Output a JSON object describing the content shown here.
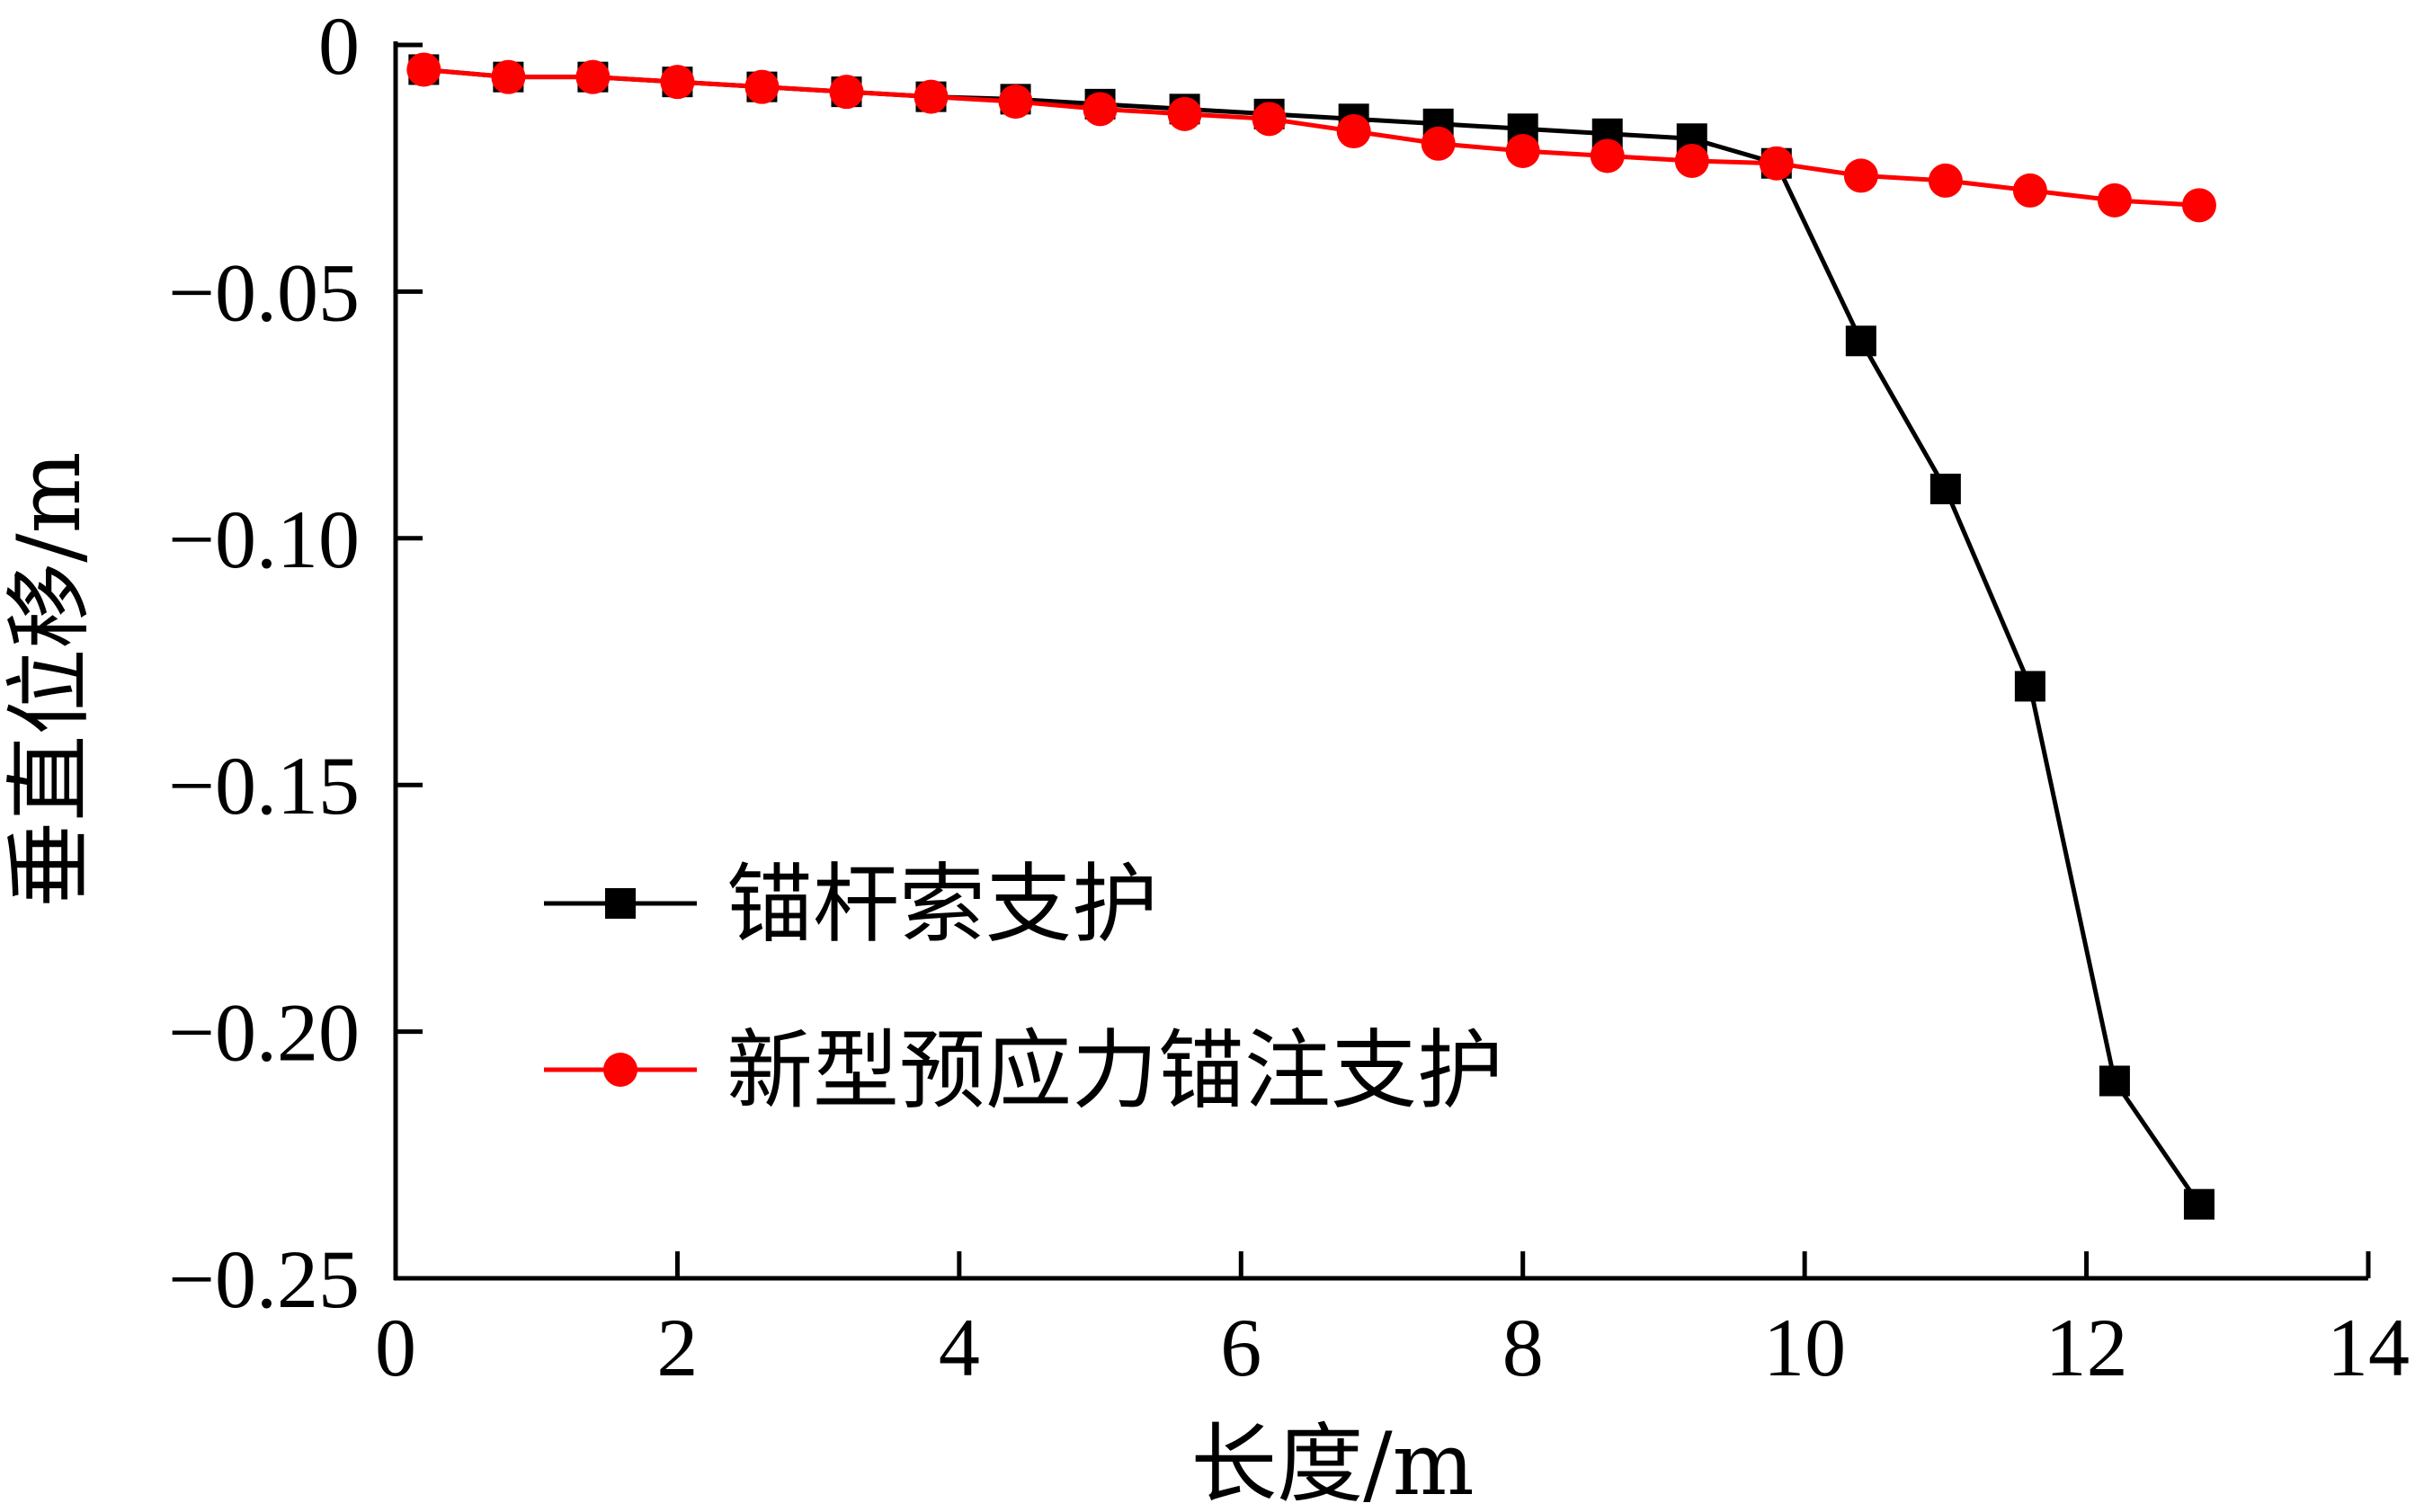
{
  "chart_data": {
    "type": "line",
    "title": "",
    "xlabel": "长度/m",
    "ylabel": "垂直位移/m",
    "xlim": [
      0,
      14
    ],
    "ylim": [
      -0.25,
      0
    ],
    "x_ticks": [
      0,
      2,
      4,
      6,
      8,
      10,
      12,
      14
    ],
    "x_tick_labels": [
      "0",
      "2",
      "4",
      "6",
      "8",
      "10",
      "12",
      "14"
    ],
    "y_ticks": [
      0,
      -0.05,
      -0.1,
      -0.15,
      -0.2,
      -0.25
    ],
    "y_tick_labels": [
      "0",
      "−0.05",
      "−0.10",
      "−0.15",
      "−0.20",
      "−0.25"
    ],
    "grid": false,
    "legend_position": "lower-left",
    "series": [
      {
        "name": "锚杆索支护",
        "color": "#000000",
        "marker": "square",
        "x": [
          0.2,
          0.8,
          1.4,
          2.0,
          2.6,
          3.2,
          3.8,
          4.4,
          5.0,
          5.6,
          6.2,
          6.8,
          7.4,
          8.0,
          8.6,
          9.2,
          9.8,
          10.4,
          11.0,
          11.6,
          12.2,
          12.8
        ],
        "values": [
          -0.005,
          -0.0065,
          -0.0065,
          -0.0075,
          -0.0085,
          -0.0095,
          -0.0105,
          -0.011,
          -0.012,
          -0.013,
          -0.014,
          -0.015,
          -0.016,
          -0.017,
          -0.018,
          -0.019,
          -0.024,
          -0.06,
          -0.09,
          -0.13,
          -0.21,
          -0.235
        ]
      },
      {
        "name": "新型预应力锚注支护",
        "color": "#ff0000",
        "marker": "circle",
        "x": [
          0.2,
          0.8,
          1.4,
          2.0,
          2.6,
          3.2,
          3.8,
          4.4,
          5.0,
          5.6,
          6.2,
          6.8,
          7.4,
          8.0,
          8.6,
          9.2,
          9.8,
          10.4,
          11.0,
          11.6,
          12.2,
          12.8
        ],
        "values": [
          -0.005,
          -0.0065,
          -0.0065,
          -0.0075,
          -0.0085,
          -0.0095,
          -0.0105,
          -0.0115,
          -0.013,
          -0.014,
          -0.015,
          -0.0175,
          -0.02,
          -0.0215,
          -0.0225,
          -0.0235,
          -0.024,
          -0.0265,
          -0.0275,
          -0.0295,
          -0.0315,
          -0.0325
        ]
      }
    ]
  }
}
